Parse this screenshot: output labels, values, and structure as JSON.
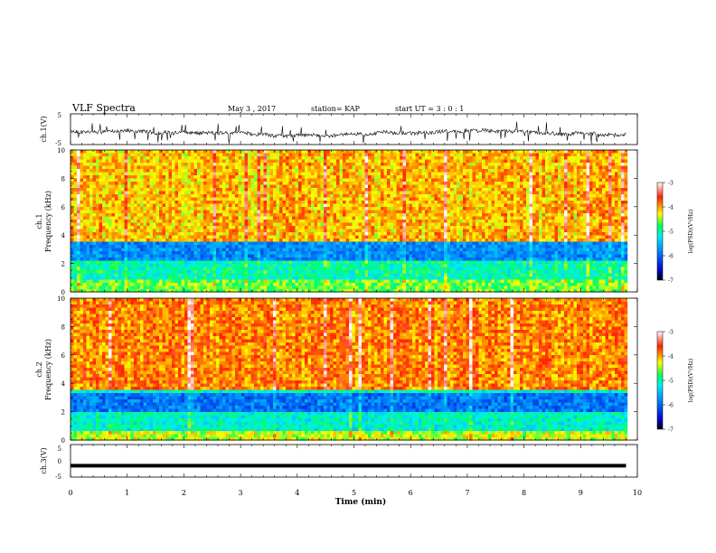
{
  "header": {
    "title": "VLF Spectra",
    "date": "May 3 , 2017",
    "station": "station= KAP",
    "start_ut": "start UT = 3 : 0 : 1"
  },
  "chart_data": [
    {
      "type": "line",
      "name": "ch1-waveform",
      "ylabel": "ch.1(V)",
      "ylim": [
        -5,
        5
      ],
      "yticks": [
        "5",
        "-5"
      ],
      "xlim": [
        0,
        10
      ],
      "trace_color": "#000000",
      "description_level": "noisy waveform around about -1 V with spikes to about ±3 V"
    },
    {
      "type": "heatmap",
      "name": "ch1-spectrogram",
      "ylabel": "ch.1 Frequency (kHz)",
      "ylabel_lines": [
        "ch.1",
        "Frequency (kHz)"
      ],
      "ylim": [
        0,
        10
      ],
      "yticks": [
        "0",
        "2",
        "4",
        "6",
        "8",
        "10"
      ],
      "xlim": [
        0,
        9.8
      ],
      "colorbar": {
        "label": "log(PSD)(V²/Hz)",
        "range": [
          -7,
          -3
        ],
        "ticks": [
          "-3",
          "-4",
          "-5",
          "-6",
          "-7"
        ]
      }
    },
    {
      "type": "heatmap",
      "name": "ch2-spectrogram",
      "ylabel": "ch.2 Frequency (kHz)",
      "ylabel_lines": [
        "ch.2",
        "Frequency (kHz)"
      ],
      "ylim": [
        0,
        10
      ],
      "yticks": [
        "0",
        "2",
        "4",
        "6",
        "8",
        "10"
      ],
      "xlim": [
        0,
        9.8
      ],
      "colorbar": {
        "label": "log(PSD)(V²/Hz)",
        "range": [
          -7,
          -3
        ],
        "ticks": [
          "-3",
          "-4",
          "-5",
          "-6",
          "-7"
        ]
      }
    },
    {
      "type": "line",
      "name": "ch3-waveform",
      "ylabel": "ch.3(V)",
      "ylim": [
        -5,
        5
      ],
      "yticks": [
        "5",
        "0",
        "-5"
      ],
      "xlim": [
        0,
        10
      ],
      "constant_value": -1.5,
      "trace_color": "#000000"
    }
  ],
  "x_axis": {
    "label": "Time (min)",
    "range": [
      0,
      10
    ],
    "ticks": [
      "0",
      "1",
      "2",
      "3",
      "4",
      "5",
      "6",
      "7",
      "8",
      "9",
      "10"
    ]
  }
}
